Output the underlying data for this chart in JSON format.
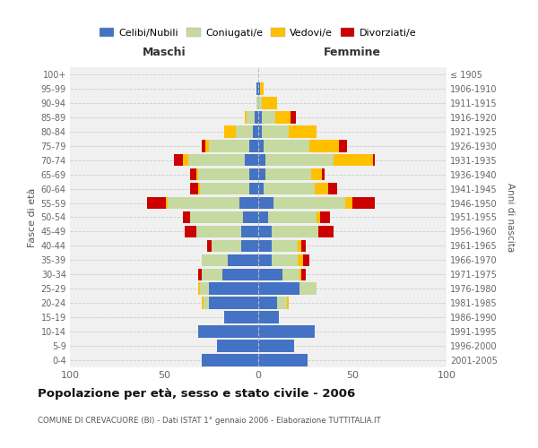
{
  "age_groups": [
    "0-4",
    "5-9",
    "10-14",
    "15-19",
    "20-24",
    "25-29",
    "30-34",
    "35-39",
    "40-44",
    "45-49",
    "50-54",
    "55-59",
    "60-64",
    "65-69",
    "70-74",
    "75-79",
    "80-84",
    "85-89",
    "90-94",
    "95-99",
    "100+"
  ],
  "birth_years": [
    "2001-2005",
    "1996-2000",
    "1991-1995",
    "1986-1990",
    "1981-1985",
    "1976-1980",
    "1971-1975",
    "1966-1970",
    "1961-1965",
    "1956-1960",
    "1951-1955",
    "1946-1950",
    "1941-1945",
    "1936-1940",
    "1931-1935",
    "1926-1930",
    "1921-1925",
    "1916-1920",
    "1911-1915",
    "1906-1910",
    "≤ 1905"
  ],
  "maschi": {
    "celibi": [
      30,
      22,
      32,
      18,
      26,
      26,
      19,
      16,
      9,
      9,
      8,
      10,
      5,
      5,
      7,
      5,
      3,
      2,
      0,
      1,
      0
    ],
    "coniugati": [
      0,
      0,
      0,
      0,
      3,
      5,
      11,
      14,
      16,
      24,
      28,
      38,
      26,
      27,
      30,
      21,
      9,
      4,
      1,
      0,
      0
    ],
    "vedove": [
      0,
      0,
      0,
      0,
      1,
      1,
      0,
      0,
      0,
      0,
      0,
      1,
      1,
      1,
      3,
      2,
      6,
      1,
      0,
      0,
      0
    ],
    "divorziate": [
      0,
      0,
      0,
      0,
      0,
      0,
      2,
      0,
      2,
      6,
      4,
      10,
      4,
      3,
      5,
      2,
      0,
      0,
      0,
      0,
      0
    ]
  },
  "femmine": {
    "nubili": [
      26,
      19,
      30,
      11,
      10,
      22,
      13,
      7,
      7,
      7,
      5,
      8,
      3,
      4,
      4,
      3,
      2,
      2,
      0,
      1,
      0
    ],
    "coniugate": [
      0,
      0,
      0,
      0,
      5,
      9,
      9,
      14,
      14,
      25,
      26,
      38,
      27,
      24,
      36,
      24,
      14,
      7,
      2,
      0,
      0
    ],
    "vedove": [
      0,
      0,
      0,
      0,
      1,
      0,
      1,
      3,
      2,
      0,
      2,
      4,
      7,
      6,
      21,
      16,
      15,
      8,
      8,
      2,
      0
    ],
    "divorziate": [
      0,
      0,
      0,
      0,
      0,
      0,
      2,
      3,
      2,
      8,
      5,
      12,
      5,
      1,
      1,
      4,
      0,
      3,
      0,
      0,
      0
    ]
  },
  "colors": {
    "celibi": "#4472c4",
    "coniugati": "#c5d9a0",
    "vedove": "#ffc000",
    "divorziate": "#cc0000"
  },
  "legend_labels": [
    "Celibi/Nubili",
    "Coniugati/e",
    "Vedovi/e",
    "Divorziati/e"
  ],
  "title": "Popolazione per età, sesso e stato civile - 2006",
  "subtitle": "COMUNE DI CREVACUORE (BI) - Dati ISTAT 1° gennaio 2006 - Elaborazione TUTTITALIA.IT",
  "xlabel_left": "Maschi",
  "xlabel_right": "Femmine",
  "ylabel_left": "Fasce di età",
  "ylabel_right": "Anni di nascita",
  "xlim": 100,
  "bg_color": "#f0f0f0",
  "bar_height": 0.85
}
